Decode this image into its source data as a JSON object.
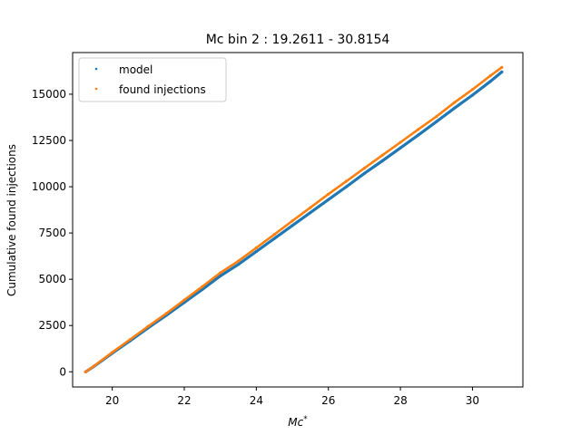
{
  "chart_data": {
    "type": "scatter",
    "title": "Mc bin 2 : 19.2611 - 30.8154",
    "xlabel": "Mc",
    "xlabel_superscript": "*",
    "ylabel": "Cumulative found injections",
    "xlim": [
      18.9,
      31.4
    ],
    "ylim": [
      -820,
      17250
    ],
    "xticks": [
      20,
      22,
      24,
      26,
      28,
      30
    ],
    "yticks": [
      0,
      2500,
      5000,
      7500,
      10000,
      12500,
      15000
    ],
    "grid": false,
    "legend_position": "upper-left",
    "series": [
      {
        "name": "model",
        "color": "#1f77b4",
        "x": [
          19.2611,
          19.5,
          20.0,
          20.5,
          21.0,
          21.5,
          22.0,
          22.5,
          23.0,
          23.5,
          24.0,
          24.5,
          25.0,
          25.5,
          26.0,
          26.5,
          27.0,
          27.5,
          28.0,
          28.5,
          29.0,
          29.5,
          30.0,
          30.5,
          30.8154
        ],
        "y": [
          0,
          300,
          1000,
          1680,
          2380,
          3050,
          3750,
          4450,
          5180,
          5800,
          6500,
          7200,
          7900,
          8600,
          9300,
          10000,
          10720,
          11400,
          12100,
          12800,
          13520,
          14250,
          14950,
          15700,
          16200
        ]
      },
      {
        "name": "found injections",
        "color": "#ff7f0e",
        "x": [
          19.2611,
          19.5,
          20.0,
          20.5,
          21.0,
          21.5,
          22.0,
          22.5,
          23.0,
          23.5,
          24.0,
          24.5,
          25.0,
          25.5,
          26.0,
          26.5,
          27.0,
          27.5,
          28.0,
          28.5,
          29.0,
          29.5,
          30.0,
          30.5,
          30.8154
        ],
        "y": [
          0,
          320,
          1050,
          1750,
          2460,
          3150,
          3880,
          4600,
          5350,
          5980,
          6700,
          7420,
          8150,
          8870,
          9600,
          10300,
          11000,
          11700,
          12400,
          13100,
          13800,
          14550,
          15250,
          16000,
          16450
        ]
      }
    ]
  }
}
